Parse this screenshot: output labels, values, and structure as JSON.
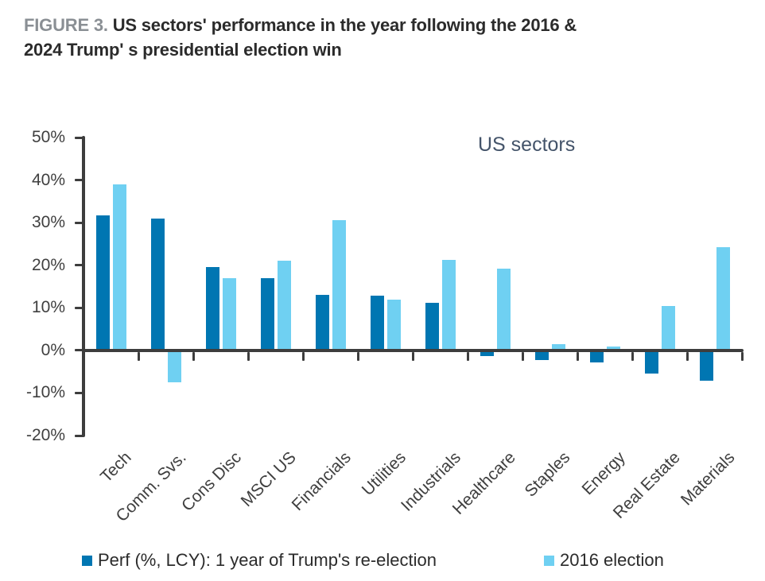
{
  "title": {
    "figure_label": "FIGURE 3.",
    "line1": "US sectors' performance in the year following the 2016 &",
    "line2": "2024 Trump' s presidential election win"
  },
  "annotation": "US sectors",
  "legend": {
    "series1_label": "Perf (%, LCY): 1 year of Trump's re-election",
    "series2_label": "2016 election"
  },
  "colors": {
    "series1": "#0076b2",
    "series2": "#6fd0f2",
    "axis": "#3d3d3d",
    "figure_label": "#8a8f94",
    "title_text": "#2b2b2b",
    "annotation_text": "#44546a"
  },
  "chart_data": {
    "type": "bar",
    "title": "US sectors",
    "categories": [
      "Tech",
      "Comm. Svs.",
      "Cons Disc",
      "MSCI US",
      "Financials",
      "Utilities",
      "Industrials",
      "Healthcare",
      "Staples",
      "Energy",
      "Real Estate",
      "Materials"
    ],
    "series": [
      {
        "name": "Perf (%, LCY): 1 year of Trump's re-election",
        "color_key": "series1",
        "values": [
          31.7,
          31,
          19.5,
          17,
          13,
          12.8,
          11.2,
          -1.3,
          -2.2,
          -2.8,
          -5.5,
          -7.2
        ]
      },
      {
        "name": "2016 election",
        "color_key": "series2",
        "values": [
          39,
          -7.5,
          17,
          21,
          30.5,
          12,
          21.2,
          19.2,
          1.5,
          1,
          10.5,
          24.3
        ]
      }
    ],
    "xlabel": "",
    "ylabel": "",
    "y_ticks": [
      50,
      40,
      30,
      20,
      10,
      0,
      -10,
      -20
    ],
    "y_tick_suffix": "%",
    "ylim": [
      -20,
      50
    ],
    "grid": false,
    "legend_position": "bottom"
  }
}
